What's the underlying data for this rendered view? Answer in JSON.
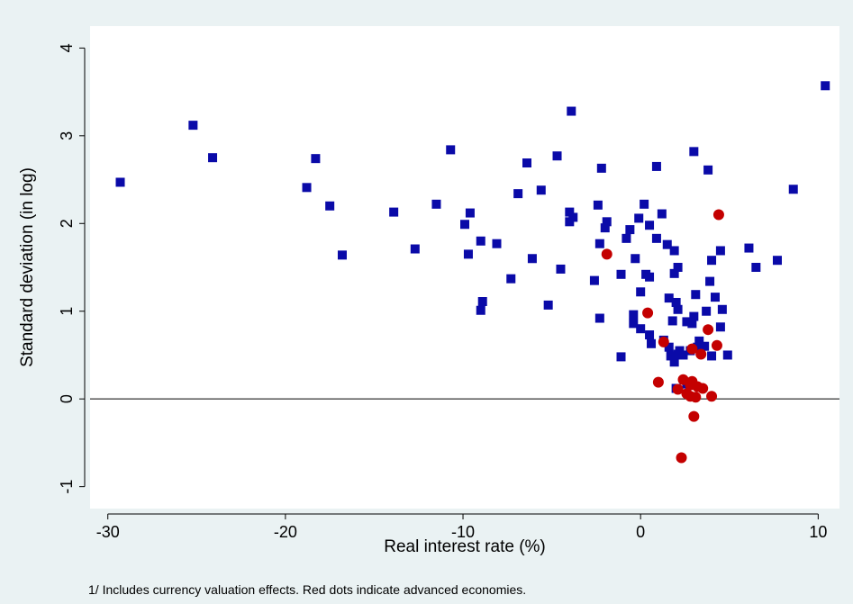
{
  "chart_data": {
    "type": "scatter",
    "title": "",
    "xlabel": "Real interest rate (%)",
    "ylabel": "Standard deviation (in log)",
    "xlim": [
      -31,
      11.2
    ],
    "ylim": [
      -1.25,
      4.25
    ],
    "xticks": [
      -30,
      -20,
      -10,
      0,
      10
    ],
    "yticks": [
      -1,
      0,
      1,
      2,
      3,
      4
    ],
    "grid": false,
    "reference_line_y": 0,
    "series": [
      {
        "color": "#0a0aa8",
        "marker": "square",
        "points": [
          [
            -29.3,
            2.47
          ],
          [
            -25.2,
            3.12
          ],
          [
            -24.1,
            2.75
          ],
          [
            -18.8,
            2.41
          ],
          [
            -18.3,
            2.74
          ],
          [
            -17.5,
            2.2
          ],
          [
            -16.8,
            1.64
          ],
          [
            -13.9,
            2.13
          ],
          [
            -12.7,
            1.71
          ],
          [
            -11.5,
            2.22
          ],
          [
            -10.7,
            2.84
          ],
          [
            -9.9,
            1.99
          ],
          [
            -9.7,
            1.65
          ],
          [
            -9.6,
            2.12
          ],
          [
            -9.0,
            1.8
          ],
          [
            -8.9,
            1.11
          ],
          [
            -9.0,
            1.01
          ],
          [
            -8.1,
            1.77
          ],
          [
            -7.3,
            1.37
          ],
          [
            -6.9,
            2.34
          ],
          [
            -6.4,
            2.69
          ],
          [
            -6.1,
            1.6
          ],
          [
            -5.6,
            2.38
          ],
          [
            -5.2,
            1.07
          ],
          [
            -4.7,
            2.77
          ],
          [
            -4.5,
            1.48
          ],
          [
            -4.0,
            2.02
          ],
          [
            -4.0,
            2.13
          ],
          [
            -3.9,
            3.28
          ],
          [
            -3.8,
            2.07
          ],
          [
            -2.6,
            1.35
          ],
          [
            -2.4,
            2.21
          ],
          [
            -2.3,
            0.92
          ],
          [
            -2.3,
            1.77
          ],
          [
            -2.2,
            2.63
          ],
          [
            -2.0,
            1.95
          ],
          [
            -1.9,
            2.02
          ],
          [
            -1.1,
            0.48
          ],
          [
            -1.1,
            1.42
          ],
          [
            -0.8,
            1.83
          ],
          [
            -0.6,
            1.93
          ],
          [
            -0.4,
            0.86
          ],
          [
            -0.4,
            0.96
          ],
          [
            -0.3,
            1.6
          ],
          [
            -0.1,
            2.06
          ],
          [
            0.0,
            1.22
          ],
          [
            0.0,
            0.8
          ],
          [
            0.2,
            2.22
          ],
          [
            0.3,
            1.42
          ],
          [
            0.5,
            1.98
          ],
          [
            0.5,
            1.39
          ],
          [
            0.5,
            0.73
          ],
          [
            0.6,
            0.63
          ],
          [
            0.9,
            2.65
          ],
          [
            0.9,
            1.83
          ],
          [
            1.2,
            2.11
          ],
          [
            1.3,
            0.67
          ],
          [
            1.5,
            1.76
          ],
          [
            1.6,
            1.15
          ],
          [
            1.6,
            0.59
          ],
          [
            1.7,
            0.49
          ],
          [
            1.8,
            0.89
          ],
          [
            1.9,
            1.69
          ],
          [
            1.9,
            1.43
          ],
          [
            1.9,
            0.42
          ],
          [
            2.0,
            1.1
          ],
          [
            2.0,
            0.12
          ],
          [
            2.1,
            1.02
          ],
          [
            2.1,
            1.5
          ],
          [
            2.1,
            0.51
          ],
          [
            2.2,
            0.55
          ],
          [
            2.4,
            0.5
          ],
          [
            2.6,
            0.17
          ],
          [
            2.6,
            0.88
          ],
          [
            2.8,
            0.55
          ],
          [
            2.9,
            0.86
          ],
          [
            3.0,
            2.82
          ],
          [
            3.0,
            0.94
          ],
          [
            3.1,
            1.19
          ],
          [
            3.2,
            0.59
          ],
          [
            3.3,
            0.66
          ],
          [
            3.4,
            0.58
          ],
          [
            3.6,
            0.6
          ],
          [
            3.7,
            1.0
          ],
          [
            3.8,
            2.61
          ],
          [
            3.9,
            1.34
          ],
          [
            4.0,
            1.58
          ],
          [
            4.0,
            0.49
          ],
          [
            4.2,
            1.16
          ],
          [
            4.5,
            1.69
          ],
          [
            4.5,
            0.82
          ],
          [
            4.6,
            1.02
          ],
          [
            4.9,
            0.5
          ],
          [
            6.1,
            1.72
          ],
          [
            6.5,
            1.5
          ],
          [
            7.7,
            1.58
          ],
          [
            8.6,
            2.39
          ],
          [
            10.4,
            3.57
          ]
        ]
      },
      {
        "color": "#c40000",
        "marker": "circle",
        "points": [
          [
            -1.9,
            1.65
          ],
          [
            0.4,
            0.98
          ],
          [
            1.0,
            0.19
          ],
          [
            1.3,
            0.65
          ],
          [
            2.1,
            0.11
          ],
          [
            2.3,
            -0.67
          ],
          [
            2.4,
            0.22
          ],
          [
            2.6,
            0.06
          ],
          [
            2.8,
            0.16
          ],
          [
            2.8,
            0.03
          ],
          [
            2.9,
            0.57
          ],
          [
            2.9,
            0.2
          ],
          [
            3.0,
            -0.2
          ],
          [
            3.1,
            0.02
          ],
          [
            3.2,
            0.14
          ],
          [
            3.4,
            0.51
          ],
          [
            3.5,
            0.12
          ],
          [
            3.8,
            0.79
          ],
          [
            4.0,
            0.03
          ],
          [
            4.3,
            0.61
          ],
          [
            4.4,
            2.1
          ]
        ]
      }
    ]
  },
  "footnote": "1/ Includes currency valuation effects. Red dots indicate advanced economies."
}
